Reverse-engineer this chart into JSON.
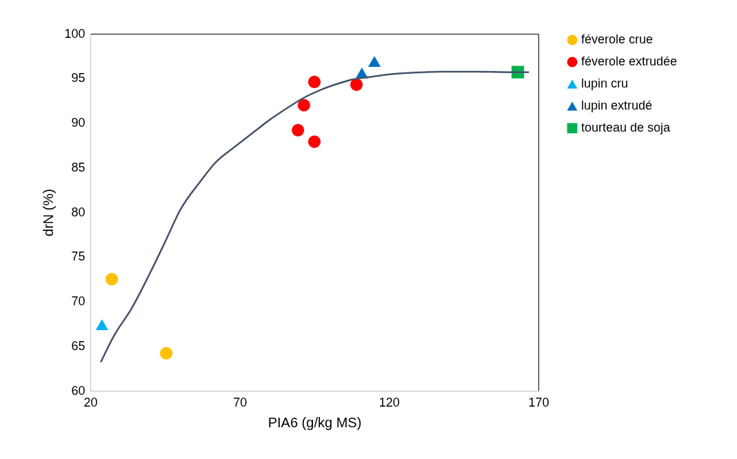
{
  "chart_data": {
    "type": "scatter",
    "xlabel": "PIA6 (g/kg MS)",
    "ylabel": "drN (%)",
    "xlim": [
      20,
      170
    ],
    "xticks": [
      20,
      70,
      120,
      170
    ],
    "ylim": [
      60,
      100
    ],
    "yticks": [
      60,
      65,
      70,
      75,
      80,
      85,
      90,
      95,
      100
    ],
    "grid": false,
    "legend": "right",
    "series": [
      {
        "name": "féverole crue",
        "color": "#ffc000",
        "marker": "circle",
        "x": [
          27.2,
          45.4
        ],
        "values": [
          72.5,
          64.2
        ]
      },
      {
        "name": "féverole extrudée",
        "color": "#ff0000",
        "marker": "circle",
        "x": [
          89.5,
          91.5,
          95.0,
          95.0,
          109.1
        ],
        "values": [
          89.2,
          92.0,
          94.6,
          87.9,
          94.3
        ]
      },
      {
        "name": "lupin cru",
        "color": "#00b0f0",
        "marker": "triangle",
        "x": [
          23.9
        ],
        "values": [
          67.4
        ]
      },
      {
        "name": "lupin extrudé",
        "color": "#0070c0",
        "marker": "triangle",
        "x": [
          110.9,
          115.1
        ],
        "values": [
          95.6,
          96.9
        ]
      },
      {
        "name": "tourteau de soja",
        "color": "#00b050",
        "marker": "square",
        "x": [
          163.1
        ],
        "values": [
          95.7
        ]
      },
      {
        "type": "line",
        "color": "#44546a",
        "marker": "none",
        "x": [
          23.5,
          28,
          33.6,
          40,
          45.2,
          50,
          56.7,
          62,
          68.2,
          74,
          79.8,
          86,
          91.3,
          97,
          102.8,
          108,
          114.4,
          120,
          125.9,
          132,
          137.5,
          149,
          160,
          166.8
        ],
        "values": [
          63.2,
          66.2,
          69.1,
          73.2,
          76.8,
          80.2,
          83.4,
          85.6,
          87.3,
          88.8,
          90.3,
          91.7,
          92.8,
          93.7,
          94.4,
          94.9,
          95.2,
          95.45,
          95.6,
          95.7,
          95.75,
          95.75,
          95.7,
          95.7
        ]
      }
    ]
  }
}
